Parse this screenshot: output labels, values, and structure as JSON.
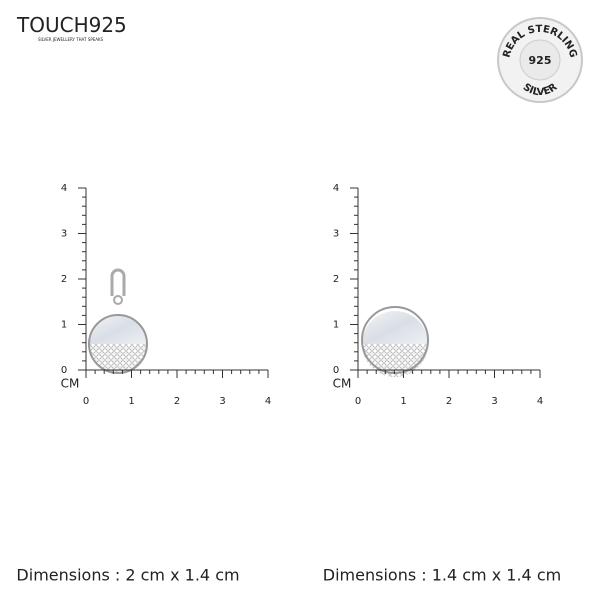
{
  "header": {
    "logo": "TOUCH925",
    "tagline": "SILVER JEWELLERY THAT SPEAKS"
  },
  "badge": {
    "top": "REAL STERLING",
    "center": "925",
    "bottom": "SILVER"
  },
  "panels": [
    {
      "ruler": {
        "unit": "CM",
        "x_ticks": [
          0,
          1,
          2,
          3,
          4
        ],
        "y_ticks": [
          0,
          1,
          2,
          3,
          4
        ]
      },
      "caption": "Dimensions : 2 cm x 1.4 cm"
    },
    {
      "ruler": {
        "unit": "CM",
        "x_ticks": [
          0,
          1,
          2,
          3,
          4
        ],
        "y_ticks": [
          0,
          1,
          2,
          3,
          4
        ]
      },
      "caption": "Dimensions : 1.4 cm x 1.4 cm"
    }
  ]
}
